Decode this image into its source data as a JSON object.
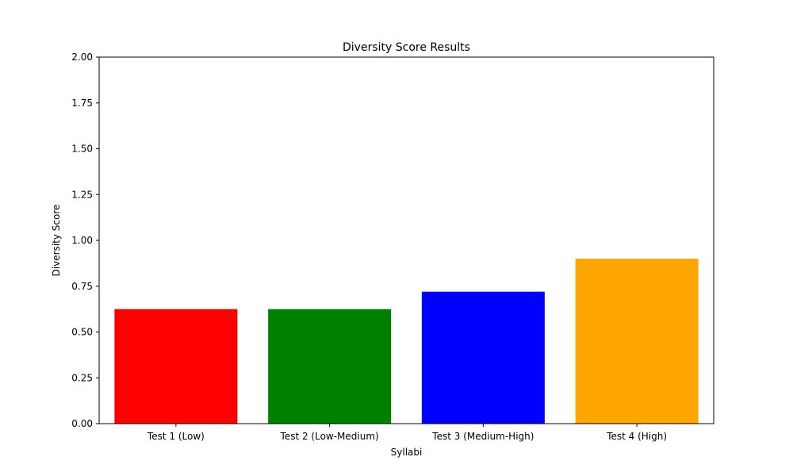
{
  "chart_data": {
    "type": "bar",
    "title": "Diversity Score Results",
    "xlabel": "Syllabi",
    "ylabel": "Diversity Score",
    "categories": [
      "Test 1 (Low)",
      "Test 2 (Low-Medium)",
      "Test 3 (Medium-High)",
      "Test 4 (High)"
    ],
    "values": [
      0.625,
      0.625,
      0.72,
      0.9
    ],
    "colors": [
      "#ff0000",
      "#008000",
      "#0000ff",
      "#ffa500"
    ],
    "ylim": [
      0,
      2
    ],
    "yticks": [
      "0.00",
      "0.25",
      "0.50",
      "0.75",
      "1.00",
      "1.25",
      "1.50",
      "1.75",
      "2.00"
    ],
    "grid": false,
    "legend": "none"
  }
}
